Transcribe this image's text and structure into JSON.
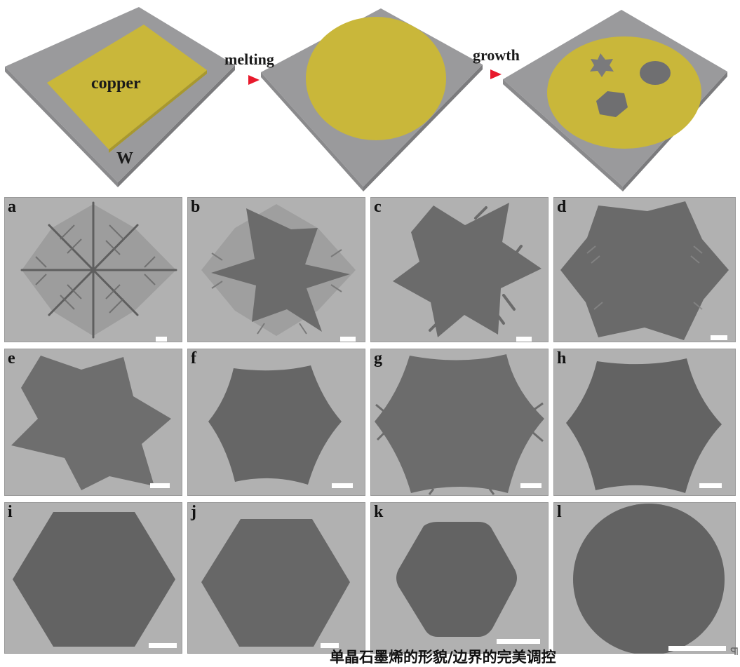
{
  "schematic": {
    "copper_label": "copper",
    "substrate_label": "W",
    "step1_label": "melting",
    "step2_label": "growth",
    "colors": {
      "substrate": "#9a9a9c",
      "copper": "#c9b73a",
      "arrow": "#e8192c"
    }
  },
  "panels": [
    {
      "letter": "a",
      "shape": "dendrite-snowflake"
    },
    {
      "letter": "b",
      "shape": "dendrite-star"
    },
    {
      "letter": "c",
      "shape": "spiky-star"
    },
    {
      "letter": "d",
      "shape": "fringed-hexagon"
    },
    {
      "letter": "e",
      "shape": "six-point-star"
    },
    {
      "letter": "f",
      "shape": "concave-hexagon"
    },
    {
      "letter": "g",
      "shape": "serrated-hexagon"
    },
    {
      "letter": "h",
      "shape": "concave-hexagon"
    },
    {
      "letter": "i",
      "shape": "hexagon"
    },
    {
      "letter": "j",
      "shape": "hexagon"
    },
    {
      "letter": "k",
      "shape": "rounded-hexagon"
    },
    {
      "letter": "l",
      "shape": "circle"
    }
  ],
  "caption": "单晶石墨烯的形貌/边界的完美调控"
}
